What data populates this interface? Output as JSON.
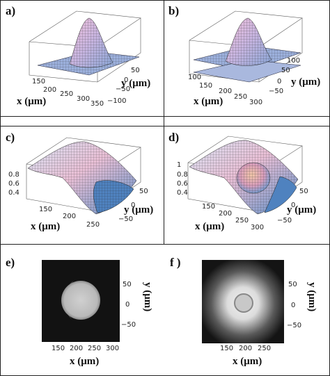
{
  "panels": {
    "a": {
      "label": "a)",
      "x_title": "x (μm)",
      "y_title": "y (μm)",
      "x_ticks": [
        "150",
        "200",
        "250",
        "300",
        "350"
      ],
      "y_ticks": [
        "50",
        "0",
        "−50",
        "−100"
      ]
    },
    "b": {
      "label": "b)",
      "x_title": "x (μm)",
      "y_title": "y (μm)",
      "x_ticks": [
        "100",
        "150",
        "200",
        "250",
        "300"
      ],
      "y_ticks": [
        "100",
        "50",
        "0",
        "−50"
      ]
    },
    "c": {
      "label": "c)",
      "x_title": "x (μm)",
      "y_title": "y (μm)",
      "x_ticks": [
        "150",
        "200",
        "250"
      ],
      "y_ticks": [
        "50",
        "0",
        "−50"
      ],
      "z_ticks": [
        "0.8",
        "0.6",
        "0.4"
      ]
    },
    "d": {
      "label": "d)",
      "x_title": "x (μm)",
      "y_title": "y (μm)",
      "x_ticks": [
        "150",
        "200",
        "250",
        "300"
      ],
      "y_ticks": [
        "50",
        "0",
        "−50"
      ],
      "z_ticks": [
        "1",
        "0.8",
        "0.6",
        "0.4"
      ]
    },
    "e": {
      "label": "e)",
      "x_title": "x (μm)",
      "y_title": "y (μm)",
      "x_ticks": [
        "150",
        "200",
        "250",
        "300"
      ],
      "y_ticks": [
        "50",
        "0",
        "−50"
      ]
    },
    "f": {
      "label": "f )",
      "x_title": "x (μm)",
      "y_title": "y (μm)",
      "x_ticks": [
        "150",
        "200",
        "250"
      ],
      "y_ticks": [
        "50",
        "0",
        "−50"
      ]
    }
  },
  "colors": {
    "frame": "#222222",
    "surface_high": "#e6b8d6",
    "surface_low": "#8fa9d8",
    "mesh": "#1a1a1a",
    "image_bg": "#111111"
  }
}
